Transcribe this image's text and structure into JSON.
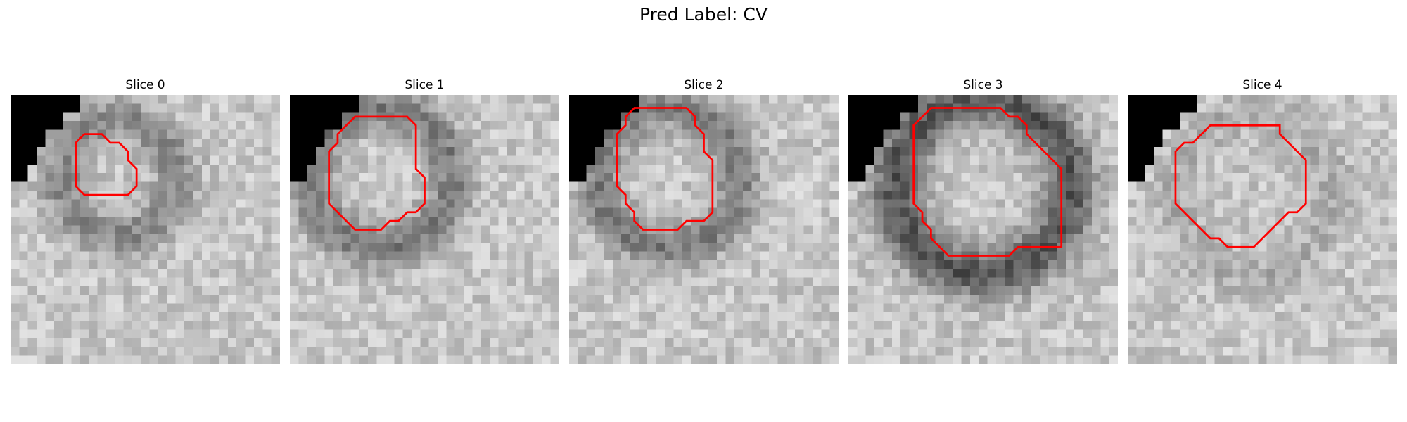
{
  "figure": {
    "title": "Pred Label: CV"
  },
  "panels": [
    {
      "title": "Slice 0",
      "contour": [
        [
          8.5,
          4.5
        ],
        [
          7.5,
          5.5
        ],
        [
          7.5,
          10.5
        ],
        [
          8.5,
          11.5
        ],
        [
          13.5,
          11.5
        ],
        [
          14.5,
          10.5
        ],
        [
          14.5,
          8.5
        ],
        [
          13.5,
          7.5
        ],
        [
          13.5,
          6.5
        ],
        [
          12.5,
          5.5
        ],
        [
          11.5,
          5.5
        ],
        [
          10.5,
          4.5
        ]
      ],
      "ring": {
        "cx": 12,
        "cy": 9,
        "r": 6.5,
        "w": 2.5,
        "strength": 0.25
      }
    },
    {
      "title": "Slice 1",
      "contour": [
        [
          6.5,
          3.5
        ],
        [
          5.5,
          4.5
        ],
        [
          5.5,
          5.5
        ],
        [
          4.5,
          6.5
        ],
        [
          4.5,
          12.5
        ],
        [
          7.5,
          15.5
        ],
        [
          10.5,
          15.5
        ],
        [
          11.5,
          14.5
        ],
        [
          12.5,
          14.5
        ],
        [
          13.5,
          13.5
        ],
        [
          14.5,
          13.5
        ],
        [
          15.5,
          12.5
        ],
        [
          15.5,
          9.5
        ],
        [
          14.5,
          8.5
        ],
        [
          14.5,
          3.5
        ],
        [
          13.5,
          2.5
        ],
        [
          7.5,
          2.5
        ]
      ],
      "ring": {
        "cx": 10,
        "cy": 9,
        "r": 8,
        "w": 2.5,
        "strength": 0.3
      }
    },
    {
      "title": "Slice 2",
      "contour": [
        [
          7.5,
          1.5
        ],
        [
          6.5,
          2.5
        ],
        [
          6.5,
          3.5
        ],
        [
          5.5,
          4.5
        ],
        [
          5.5,
          10.5
        ],
        [
          6.5,
          11.5
        ],
        [
          6.5,
          12.5
        ],
        [
          7.5,
          13.5
        ],
        [
          7.5,
          14.5
        ],
        [
          8.5,
          15.5
        ],
        [
          12.5,
          15.5
        ],
        [
          13.5,
          14.5
        ],
        [
          15.5,
          14.5
        ],
        [
          16.5,
          13.5
        ],
        [
          16.5,
          7.5
        ],
        [
          15.5,
          6.5
        ],
        [
          15.5,
          4.5
        ],
        [
          14.5,
          3.5
        ],
        [
          14.5,
          2.5
        ],
        [
          13.5,
          1.5
        ]
      ],
      "ring": {
        "cx": 11,
        "cy": 9,
        "r": 8,
        "w": 2.5,
        "strength": 0.3
      }
    },
    {
      "title": "Slice 3",
      "contour": [
        [
          9.5,
          1.5
        ],
        [
          7.5,
          3.5
        ],
        [
          7.5,
          12.5
        ],
        [
          8.5,
          13.5
        ],
        [
          8.5,
          14.5
        ],
        [
          9.5,
          15.5
        ],
        [
          9.5,
          16.5
        ],
        [
          11.5,
          18.5
        ],
        [
          18.5,
          18.5
        ],
        [
          19.5,
          17.5
        ],
        [
          24.5,
          17.5
        ],
        [
          24.5,
          8.5
        ],
        [
          20.5,
          4.5
        ],
        [
          20.5,
          3.5
        ],
        [
          19.5,
          2.5
        ],
        [
          18.5,
          2.5
        ],
        [
          17.5,
          1.5
        ]
      ],
      "ring": {
        "cx": 15,
        "cy": 10,
        "r": 10,
        "w": 3,
        "strength": 0.45
      }
    },
    {
      "title": "Slice 4",
      "contour": [
        [
          9.5,
          3.5
        ],
        [
          7.5,
          5.5
        ],
        [
          6.5,
          5.5
        ],
        [
          5.5,
          6.5
        ],
        [
          5.5,
          12.5
        ],
        [
          9.5,
          16.5
        ],
        [
          10.5,
          16.5
        ],
        [
          11.5,
          17.5
        ],
        [
          14.5,
          17.5
        ],
        [
          18.5,
          13.5
        ],
        [
          19.5,
          13.5
        ],
        [
          20.5,
          12.5
        ],
        [
          20.5,
          7.5
        ],
        [
          17.5,
          4.5
        ],
        [
          17.5,
          3.5
        ]
      ],
      "ring": {
        "cx": 14,
        "cy": 11,
        "r": 9,
        "w": 2.5,
        "strength": 0.1
      }
    }
  ]
}
